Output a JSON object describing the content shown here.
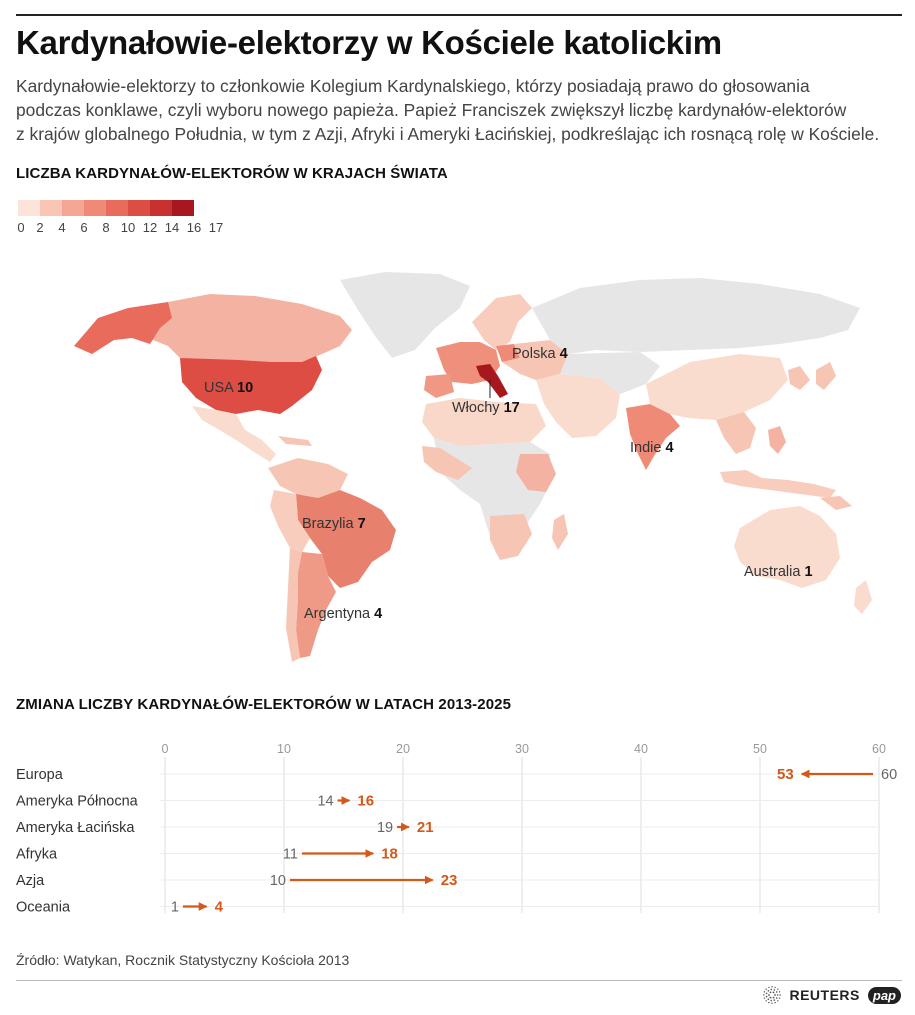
{
  "title": "Kardynałowie-elektorzy w Kościele katolickim",
  "lead": "Kardynałowie-elektorzy to członkowie Kolegium Kardynalskiego, którzy posiadają prawo do głosowania\npodczas konklawe, czyli wyboru nowego papieża. Papież Franciszek zwiększył liczbę kardynałów-elektorów\nz krajów globalnego Południa, w tym z Azji, Afryki i Ameryki Łacińskiej, podkreślając ich rosnącą rolę w Kościele.",
  "map_section": {
    "title": "LICZBA KARDYNAŁÓW-ELEKTORÓW W KRAJACH ŚWIATA",
    "legend": {
      "colors": [
        "#fde3da",
        "#f9c6b5",
        "#f4a894",
        "#ef8a76",
        "#e86b5b",
        "#dd4d43",
        "#c8312f",
        "#a6181d"
      ],
      "ticks": [
        "0",
        "2",
        "4",
        "6",
        "8",
        "10",
        "12",
        "14",
        "16",
        "17"
      ]
    },
    "labels": [
      {
        "name": "USA",
        "value": "10"
      },
      {
        "name": "Polska",
        "value": "4"
      },
      {
        "name": "Włochy",
        "value": "17"
      },
      {
        "name": "Indie",
        "value": "4"
      },
      {
        "name": "Brazylia",
        "value": "7"
      },
      {
        "name": "Argentyna",
        "value": "4"
      },
      {
        "name": "Australia",
        "value": "1"
      }
    ]
  },
  "chart_section": {
    "title": "ZMIANA LICZBY KARDYNAŁÓW-ELEKTORÓW W LATACH 2013-2025"
  },
  "chart_data": {
    "type": "arrow",
    "title": "ZMIANA LICZBY KARDYNAŁÓW-ELEKTORÓW W LATACH 2013-2025",
    "xlim": [
      0,
      60
    ],
    "x_ticks": [
      "0",
      "10",
      "20",
      "30",
      "40",
      "50",
      "60"
    ],
    "grid": true,
    "categories": [
      "Europa",
      "Ameryka Północna",
      "Ameryka Łacińska",
      "Afryka",
      "Azja",
      "Oceania"
    ],
    "series": [
      {
        "name": "2013",
        "values": [
          60,
          14,
          19,
          11,
          10,
          1
        ]
      },
      {
        "name": "2025",
        "values": [
          53,
          16,
          21,
          18,
          23,
          4
        ]
      }
    ]
  },
  "colors": {
    "accent": "#d4581a",
    "old_value": "#666666",
    "grid": "#dddddd",
    "land": "#e6e6e6"
  },
  "source": "Źródło: Watykan, Rocznik Statystyczny Kościoła 2013",
  "logos": {
    "reuters": "REUTERS",
    "pap": "pap"
  }
}
